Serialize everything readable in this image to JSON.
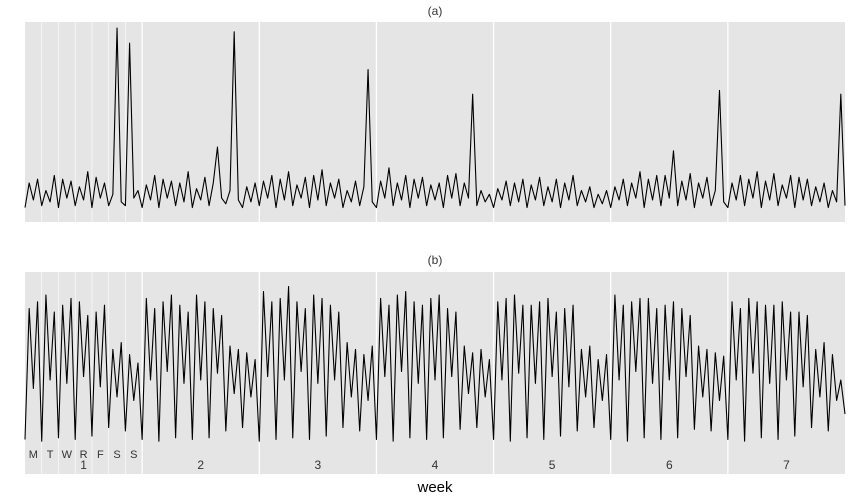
{
  "chart_data": [
    {
      "type": "line",
      "title": "(a)",
      "color": "#000000",
      "xlim": [
        0,
        49
      ],
      "ylim": [
        0,
        100
      ],
      "values": [
        5,
        18,
        9,
        20,
        6,
        14,
        8,
        22,
        5,
        20,
        10,
        19,
        6,
        16,
        9,
        24,
        5,
        21,
        10,
        18,
        6,
        12,
        100,
        8,
        6,
        92,
        10,
        14,
        5,
        17,
        9,
        22,
        5,
        20,
        10,
        19,
        6,
        18,
        8,
        24,
        5,
        15,
        9,
        21,
        6,
        18,
        37,
        10,
        7,
        14,
        98,
        9,
        5,
        16,
        8,
        18,
        6,
        19,
        10,
        22,
        5,
        20,
        9,
        24,
        6,
        17,
        10,
        21,
        5,
        22,
        9,
        25,
        6,
        18,
        10,
        20,
        5,
        14,
        8,
        19,
        6,
        16,
        78,
        8,
        5,
        19,
        10,
        26,
        6,
        18,
        9,
        22,
        5,
        20,
        10,
        21,
        6,
        17,
        9,
        18,
        5,
        22,
        10,
        23,
        6,
        18,
        10,
        65,
        6,
        14,
        8,
        12,
        5,
        15,
        9,
        19,
        6,
        18,
        8,
        20,
        5,
        17,
        9,
        21,
        6,
        16,
        8,
        20,
        5,
        18,
        9,
        22,
        6,
        14,
        8,
        16,
        5,
        12,
        7,
        14,
        5,
        16,
        9,
        20,
        6,
        18,
        10,
        24,
        5,
        20,
        9,
        22,
        6,
        22,
        10,
        35,
        6,
        19,
        9,
        23,
        5,
        18,
        10,
        21,
        6,
        14,
        67,
        8,
        5,
        18,
        9,
        22,
        6,
        20,
        10,
        24,
        5,
        19,
        9,
        23,
        6,
        17,
        10,
        22,
        5,
        21,
        9,
        20,
        6,
        16,
        8,
        18,
        5,
        14,
        8,
        65,
        6
      ]
    },
    {
      "type": "line",
      "title": "(b)",
      "color": "#000000",
      "xlim": [
        0,
        49
      ],
      "ylim": [
        0,
        100
      ],
      "xlabel": "week",
      "xticks": [
        {
          "value": 3.5,
          "label": "1"
        },
        {
          "value": 10.5,
          "label": "2"
        },
        {
          "value": 17.5,
          "label": "3"
        },
        {
          "value": 24.5,
          "label": "4"
        },
        {
          "value": 31.5,
          "label": "5"
        },
        {
          "value": 38.5,
          "label": "6"
        },
        {
          "value": 45.5,
          "label": "7"
        }
      ],
      "day_ticks": [
        {
          "value": 0.5,
          "label": "M"
        },
        {
          "value": 1.5,
          "label": "T"
        },
        {
          "value": 2.5,
          "label": "W"
        },
        {
          "value": 3.5,
          "label": "R"
        },
        {
          "value": 4.5,
          "label": "F"
        },
        {
          "value": 5.5,
          "label": "S"
        },
        {
          "value": 6.5,
          "label": "S"
        }
      ],
      "values": [
        5,
        82,
        35,
        86,
        4,
        90,
        40,
        80,
        6,
        84,
        38,
        88,
        5,
        86,
        42,
        78,
        7,
        80,
        36,
        84,
        12,
        58,
        30,
        62,
        10,
        55,
        28,
        50,
        5,
        88,
        40,
        82,
        4,
        86,
        45,
        90,
        6,
        84,
        38,
        80,
        5,
        90,
        40,
        86,
        6,
        82,
        44,
        78,
        10,
        60,
        32,
        58,
        12,
        56,
        30,
        52,
        4,
        92,
        42,
        86,
        5,
        88,
        40,
        95,
        6,
        86,
        45,
        82,
        5,
        90,
        38,
        88,
        7,
        84,
        40,
        80,
        12,
        62,
        30,
        58,
        10,
        55,
        28,
        60,
        5,
        88,
        42,
        84,
        4,
        90,
        45,
        92,
        6,
        86,
        38,
        84,
        5,
        88,
        40,
        90,
        6,
        82,
        42,
        80,
        11,
        60,
        32,
        56,
        12,
        58,
        30,
        52,
        5,
        86,
        40,
        88,
        4,
        90,
        44,
        84,
        6,
        84,
        38,
        86,
        5,
        88,
        42,
        80,
        7,
        82,
        36,
        84,
        10,
        58,
        30,
        60,
        12,
        52,
        28,
        55,
        5,
        90,
        40,
        84,
        4,
        86,
        45,
        88,
        6,
        88,
        38,
        82,
        5,
        84,
        40,
        86,
        6,
        82,
        42,
        78,
        11,
        60,
        30,
        58,
        10,
        56,
        28,
        54,
        5,
        86,
        40,
        82,
        4,
        88,
        44,
        86,
        6,
        84,
        38,
        84,
        5,
        86,
        40,
        80,
        7,
        80,
        36,
        78,
        12,
        58,
        30,
        62,
        10,
        55,
        28,
        40,
        20
      ]
    }
  ]
}
